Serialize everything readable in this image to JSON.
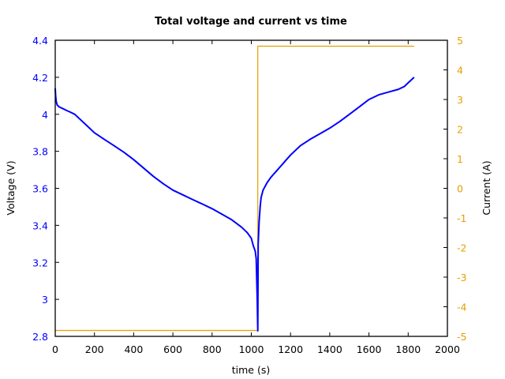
{
  "chart_data": {
    "type": "line",
    "title": "Total voltage and current vs time",
    "xlabel": "time (s)",
    "ylabel": "Voltage (V)",
    "y2label": "Current (A)",
    "xlim": [
      0,
      2000
    ],
    "ylim": [
      2.8,
      4.4
    ],
    "y2lim": [
      -5,
      5
    ],
    "grid": false,
    "legend": null,
    "x_ticks": [
      "0",
      "200",
      "400",
      "600",
      "800",
      "1000",
      "1200",
      "1400",
      "1600",
      "1800",
      "2000"
    ],
    "y_ticks": [
      "2.8",
      "3",
      "3.2",
      "3.4",
      "3.6",
      "3.8",
      "4",
      "4.2",
      "4.4"
    ],
    "y2_ticks": [
      "-5",
      "-4",
      "-3",
      "-2",
      "-1",
      "0",
      "1",
      "2",
      "3",
      "4",
      "5"
    ],
    "colors": {
      "voltage": "#0000ff",
      "current": "#e69f00"
    },
    "series": [
      {
        "name": "Voltage (V)",
        "axis": "left",
        "x": [
          0,
          2,
          5,
          10,
          20,
          40,
          60,
          80,
          100,
          150,
          200,
          250,
          300,
          350,
          400,
          450,
          500,
          550,
          600,
          650,
          700,
          750,
          800,
          850,
          900,
          950,
          980,
          1000,
          1010,
          1020,
          1025,
          1030,
          1033,
          1035,
          1040,
          1045,
          1050,
          1060,
          1080,
          1100,
          1150,
          1200,
          1250,
          1300,
          1350,
          1400,
          1450,
          1500,
          1550,
          1600,
          1650,
          1700,
          1750,
          1780,
          1800,
          1830
        ],
        "values": [
          4.14,
          4.1,
          4.07,
          4.05,
          4.04,
          4.03,
          4.02,
          4.01,
          4.0,
          3.95,
          3.9,
          3.865,
          3.83,
          3.795,
          3.755,
          3.71,
          3.665,
          3.625,
          3.59,
          3.565,
          3.54,
          3.515,
          3.49,
          3.46,
          3.43,
          3.39,
          3.36,
          3.33,
          3.29,
          3.26,
          3.22,
          3.0,
          2.83,
          3.3,
          3.42,
          3.5,
          3.55,
          3.59,
          3.63,
          3.66,
          3.72,
          3.78,
          3.83,
          3.865,
          3.895,
          3.925,
          3.96,
          4.0,
          4.04,
          4.08,
          4.105,
          4.12,
          4.135,
          4.15,
          4.17,
          4.2
        ]
      },
      {
        "name": "Current (A)",
        "axis": "right",
        "x": [
          0,
          1033,
          1033,
          1830
        ],
        "values": [
          -4.8,
          -4.8,
          4.8,
          4.8
        ]
      }
    ]
  }
}
